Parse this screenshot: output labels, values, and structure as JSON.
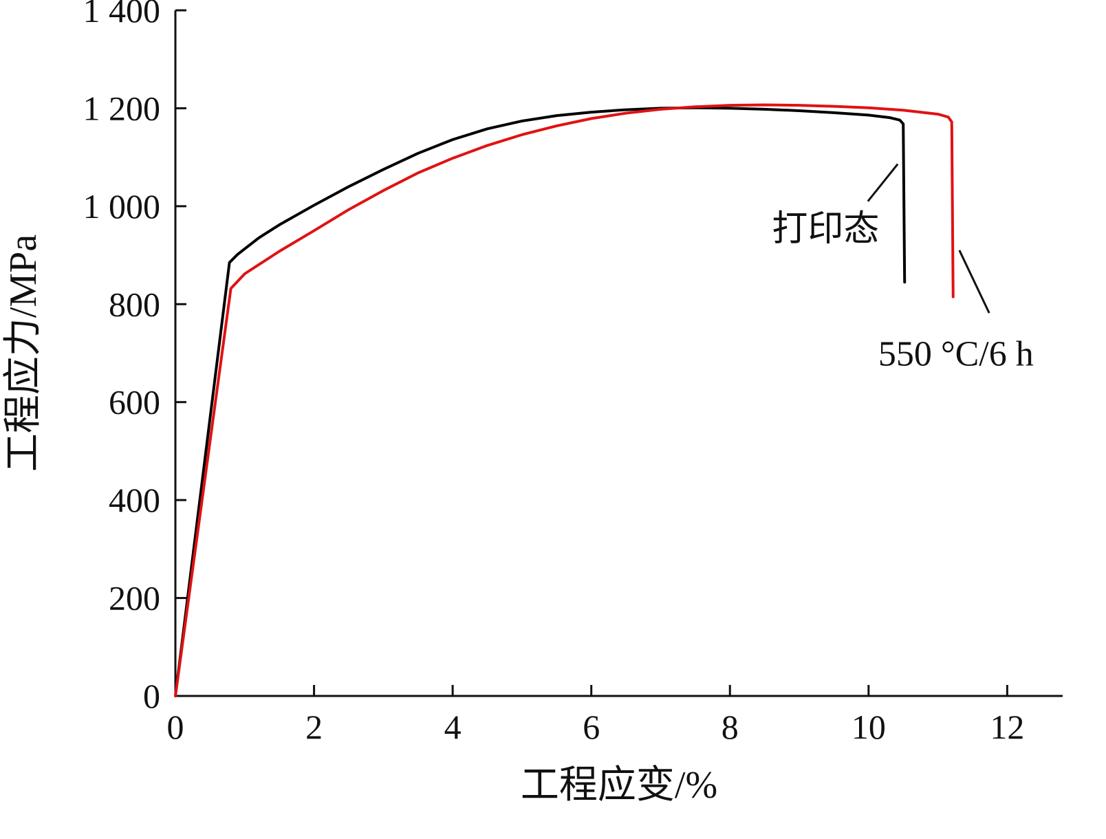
{
  "figure": {
    "background": "#ffffff"
  },
  "chart_data": {
    "type": "line",
    "title": "",
    "xlabel": "工程应变/%",
    "ylabel": "工程应力/MPa",
    "xlim": [
      0,
      12.8
    ],
    "ylim": [
      0,
      1400
    ],
    "grid": false,
    "legend_position": "none",
    "xticks": [
      0,
      2,
      4,
      6,
      8,
      10,
      12
    ],
    "xtick_labels": [
      "0",
      "2",
      "4",
      "6",
      "8",
      "10",
      "12"
    ],
    "yticks": [
      0,
      200,
      400,
      600,
      800,
      1000,
      1200,
      1400
    ],
    "ytick_labels": [
      "0",
      "200",
      "400",
      "600",
      "800",
      "1 000",
      "1 200",
      "1 400"
    ],
    "axis_color": "#111111",
    "series": [
      {
        "name": "打印态",
        "color": "#000000",
        "width": 4,
        "x": [
          0,
          0.78,
          0.9,
          1.2,
          1.5,
          2.0,
          2.5,
          3.0,
          3.5,
          4.0,
          4.5,
          5.0,
          5.5,
          6.0,
          6.5,
          7.0,
          7.5,
          8.0,
          8.5,
          9.0,
          9.5,
          10.0,
          10.3,
          10.45,
          10.5,
          10.52
        ],
        "y": [
          0,
          885,
          902,
          935,
          962,
          1002,
          1040,
          1075,
          1108,
          1136,
          1158,
          1174,
          1185,
          1192,
          1197,
          1200,
          1201,
          1200,
          1198,
          1195,
          1191,
          1186,
          1181,
          1176,
          1168,
          845
        ]
      },
      {
        "name": "550 °C/6 h",
        "color": "#e01212",
        "width": 4,
        "x": [
          0,
          0.8,
          1.0,
          1.5,
          2.0,
          2.5,
          3.0,
          3.5,
          4.0,
          4.5,
          5.0,
          5.5,
          6.0,
          6.5,
          7.0,
          7.5,
          8.0,
          8.5,
          9.0,
          9.5,
          10.0,
          10.5,
          11.0,
          11.15,
          11.2,
          11.22
        ],
        "y": [
          0,
          832,
          862,
          908,
          950,
          993,
          1032,
          1068,
          1098,
          1124,
          1146,
          1164,
          1179,
          1190,
          1198,
          1203,
          1206,
          1207,
          1206,
          1204,
          1201,
          1196,
          1188,
          1182,
          1172,
          815
        ]
      }
    ],
    "annotations": [
      {
        "text": "打印态",
        "text_x": 9.38,
        "text_y": 955,
        "font_size": 52,
        "color": "#111111",
        "leader": {
          "x1": 9.99,
          "y1": 1010,
          "x2": 10.42,
          "y2": 1086
        }
      },
      {
        "text": "550 °C/6 h",
        "text_x": 11.26,
        "text_y": 700,
        "font_size": 52,
        "color": "#111111",
        "leader": {
          "x1": 11.31,
          "y1": 910,
          "x2": 11.74,
          "y2": 782
        }
      }
    ]
  }
}
